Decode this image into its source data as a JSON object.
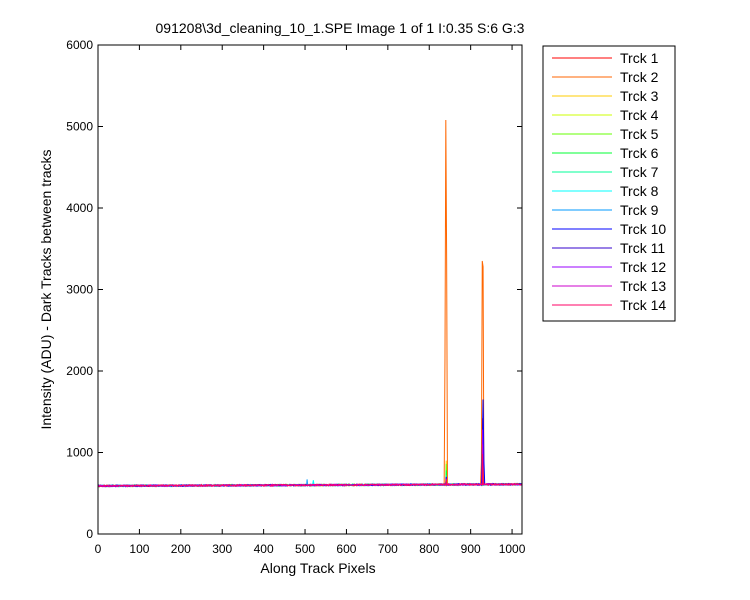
{
  "chart_data": {
    "type": "line",
    "title": "091208\\3d_cleaning_10_1.SPE  Image 1 of 1  I:0.35  S:6  G:3",
    "xlabel": "Along Track Pixels",
    "ylabel": "Intensity (ADU) - Dark Tracks between tracks",
    "xlim": [
      0,
      1024
    ],
    "ylim": [
      0,
      6000
    ],
    "x_ticks": [
      "0",
      "100",
      "200",
      "300",
      "400",
      "500",
      "600",
      "700",
      "800",
      "900",
      "1000"
    ],
    "y_ticks": [
      "0",
      "1000",
      "2000",
      "3000",
      "4000",
      "5000",
      "6000"
    ],
    "legend_position": "outside-right",
    "grid": false,
    "baseline": {
      "start": 590,
      "end": 610,
      "noise": 10
    },
    "series": [
      {
        "name": "Trck 1",
        "color": "#ff0000",
        "peaks": [
          [
            841,
            700
          ],
          [
            928,
            640
          ]
        ]
      },
      {
        "name": "Trck 2",
        "color": "#ff6600",
        "peaks": [
          [
            838,
            2150
          ],
          [
            840,
            5080
          ],
          [
            842,
            3380
          ],
          [
            926,
            880
          ],
          [
            928,
            3350
          ],
          [
            930,
            3280
          ]
        ]
      },
      {
        "name": "Trck 3",
        "color": "#ffcc00",
        "peaks": [
          [
            841,
            900
          ],
          [
            929,
            700
          ]
        ]
      },
      {
        "name": "Trck 4",
        "color": "#ccff00",
        "peaks": [
          [
            841,
            820
          ],
          [
            929,
            680
          ]
        ]
      },
      {
        "name": "Trck 5",
        "color": "#66ff00",
        "peaks": [
          [
            841,
            860
          ],
          [
            929,
            660
          ]
        ]
      },
      {
        "name": "Trck 6",
        "color": "#00ff33",
        "peaks": [
          [
            841,
            780
          ],
          [
            929,
            700
          ]
        ]
      },
      {
        "name": "Trck 7",
        "color": "#00ff99",
        "peaks": [
          [
            841,
            720
          ],
          [
            929,
            680
          ]
        ]
      },
      {
        "name": "Trck 8",
        "color": "#00ffff",
        "peaks": [
          [
            520,
            660
          ],
          [
            841,
            690
          ],
          [
            929,
            700
          ]
        ]
      },
      {
        "name": "Trck 9",
        "color": "#0099ff",
        "peaks": [
          [
            505,
            670
          ],
          [
            841,
            700
          ],
          [
            929,
            760
          ]
        ]
      },
      {
        "name": "Trck 10",
        "color": "#0000ff",
        "peaks": [
          [
            841,
            700
          ],
          [
            928,
            1020
          ],
          [
            930,
            1650
          ],
          [
            932,
            900
          ]
        ]
      },
      {
        "name": "Trck 11",
        "color": "#3300cc",
        "peaks": [
          [
            841,
            690
          ],
          [
            929,
            1420
          ]
        ]
      },
      {
        "name": "Trck 12",
        "color": "#9900ff",
        "peaks": [
          [
            841,
            680
          ],
          [
            929,
            1280
          ]
        ]
      },
      {
        "name": "Trck 13",
        "color": "#cc00cc",
        "peaks": [
          [
            841,
            670
          ],
          [
            929,
            1100
          ]
        ]
      },
      {
        "name": "Trck 14",
        "color": "#ff0066",
        "peaks": [
          [
            841,
            670
          ],
          [
            929,
            980
          ]
        ]
      }
    ]
  }
}
